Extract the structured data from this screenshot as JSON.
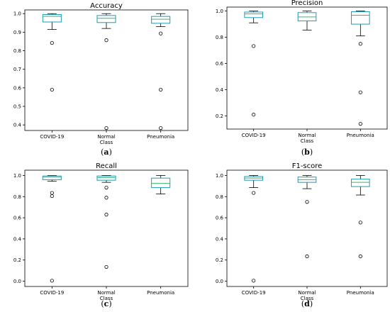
{
  "chart_data": [
    {
      "type": "box",
      "title": "Accuracy",
      "caption": {
        "open": "(",
        "letter": "a",
        "close": ")"
      },
      "categories": [
        "COVID-19",
        "Normal\nClass",
        "Pneumonia"
      ],
      "ylim": [
        0.37,
        1.02
      ],
      "yticks": [
        0.4,
        0.5,
        0.6,
        0.7,
        0.8,
        0.9,
        1.0
      ],
      "tick_labels": [
        "0.4",
        "0.5",
        "0.6",
        "0.7",
        "0.8",
        "0.9",
        "1.0"
      ],
      "grid": false,
      "boxes": [
        {
          "whisker_low": 0.915,
          "q1": 0.955,
          "median": 0.985,
          "q3": 0.995,
          "whisker_high": 1.0,
          "outliers": [
            0.842,
            0.59
          ]
        },
        {
          "whisker_low": 0.92,
          "q1": 0.952,
          "median": 0.975,
          "q3": 0.99,
          "whisker_high": 1.0,
          "outliers": [
            0.857,
            0.383
          ]
        },
        {
          "whisker_low": 0.93,
          "q1": 0.948,
          "median": 0.97,
          "q3": 0.985,
          "whisker_high": 1.0,
          "outliers": [
            0.893,
            0.59,
            0.383
          ]
        }
      ]
    },
    {
      "type": "box",
      "title": "Precision",
      "caption": {
        "open": "(",
        "letter": "b",
        "close": ")"
      },
      "categories": [
        "COVID-19",
        "Normal\nClass",
        "Pneumonia"
      ],
      "ylim": [
        0.1,
        1.03
      ],
      "yticks": [
        0.2,
        0.4,
        0.6,
        0.8,
        1.0
      ],
      "tick_labels": [
        "0.2",
        "0.4",
        "0.6",
        "0.8",
        "1.0"
      ],
      "grid": false,
      "boxes": [
        {
          "whisker_low": 0.91,
          "q1": 0.95,
          "median": 0.978,
          "q3": 0.992,
          "whisker_high": 1.0,
          "outliers": [
            0.733,
            0.21
          ]
        },
        {
          "whisker_low": 0.855,
          "q1": 0.925,
          "median": 0.955,
          "q3": 0.988,
          "whisker_high": 1.0,
          "outliers": []
        },
        {
          "whisker_low": 0.81,
          "q1": 0.9,
          "median": 0.968,
          "q3": 0.995,
          "whisker_high": 1.0,
          "outliers": [
            0.75,
            0.38,
            0.14
          ]
        }
      ]
    },
    {
      "type": "box",
      "title": "Recall",
      "caption": {
        "open": "(",
        "letter": "c",
        "close": ")"
      },
      "categories": [
        "COVID-19",
        "Normal\nClass",
        "Pneumonia"
      ],
      "ylim": [
        -0.05,
        1.05
      ],
      "yticks": [
        0.0,
        0.2,
        0.4,
        0.6,
        0.8,
        1.0
      ],
      "tick_labels": [
        "0.0",
        "0.2",
        "0.4",
        "0.6",
        "0.8",
        "1.0"
      ],
      "grid": false,
      "boxes": [
        {
          "whisker_low": 0.945,
          "q1": 0.96,
          "median": 0.985,
          "q3": 0.995,
          "whisker_high": 1.0,
          "outliers": [
            0.835,
            0.805,
            0.005
          ]
        },
        {
          "whisker_low": 0.935,
          "q1": 0.955,
          "median": 0.98,
          "q3": 0.995,
          "whisker_high": 1.0,
          "outliers": [
            0.885,
            0.79,
            0.63,
            0.135
          ]
        },
        {
          "whisker_low": 0.825,
          "q1": 0.885,
          "median": 0.925,
          "q3": 0.975,
          "whisker_high": 1.0,
          "outliers": []
        }
      ]
    },
    {
      "type": "box",
      "title": "F1-score",
      "caption": {
        "open": "(",
        "letter": "d",
        "close": ")"
      },
      "categories": [
        "COVID-19",
        "Normal\nClass",
        "Pneumonia"
      ],
      "ylim": [
        -0.05,
        1.05
      ],
      "yticks": [
        0.0,
        0.2,
        0.4,
        0.6,
        0.8,
        1.0
      ],
      "tick_labels": [
        "0.0",
        "0.2",
        "0.4",
        "0.6",
        "0.8",
        "1.0"
      ],
      "grid": false,
      "boxes": [
        {
          "whisker_low": 0.885,
          "q1": 0.955,
          "median": 0.975,
          "q3": 0.99,
          "whisker_high": 1.0,
          "outliers": [
            0.835,
            0.005
          ]
        },
        {
          "whisker_low": 0.875,
          "q1": 0.935,
          "median": 0.96,
          "q3": 0.985,
          "whisker_high": 1.0,
          "outliers": [
            0.75,
            0.235
          ]
        },
        {
          "whisker_low": 0.815,
          "q1": 0.895,
          "median": 0.935,
          "q3": 0.965,
          "whisker_high": 1.0,
          "outliers": [
            0.555,
            0.235
          ]
        }
      ]
    }
  ],
  "colors": {
    "box": "#1f9bb4",
    "median": "#3cb371",
    "whisker": "#000000",
    "outlier_edge": "#000000",
    "axes": "#000000"
  }
}
